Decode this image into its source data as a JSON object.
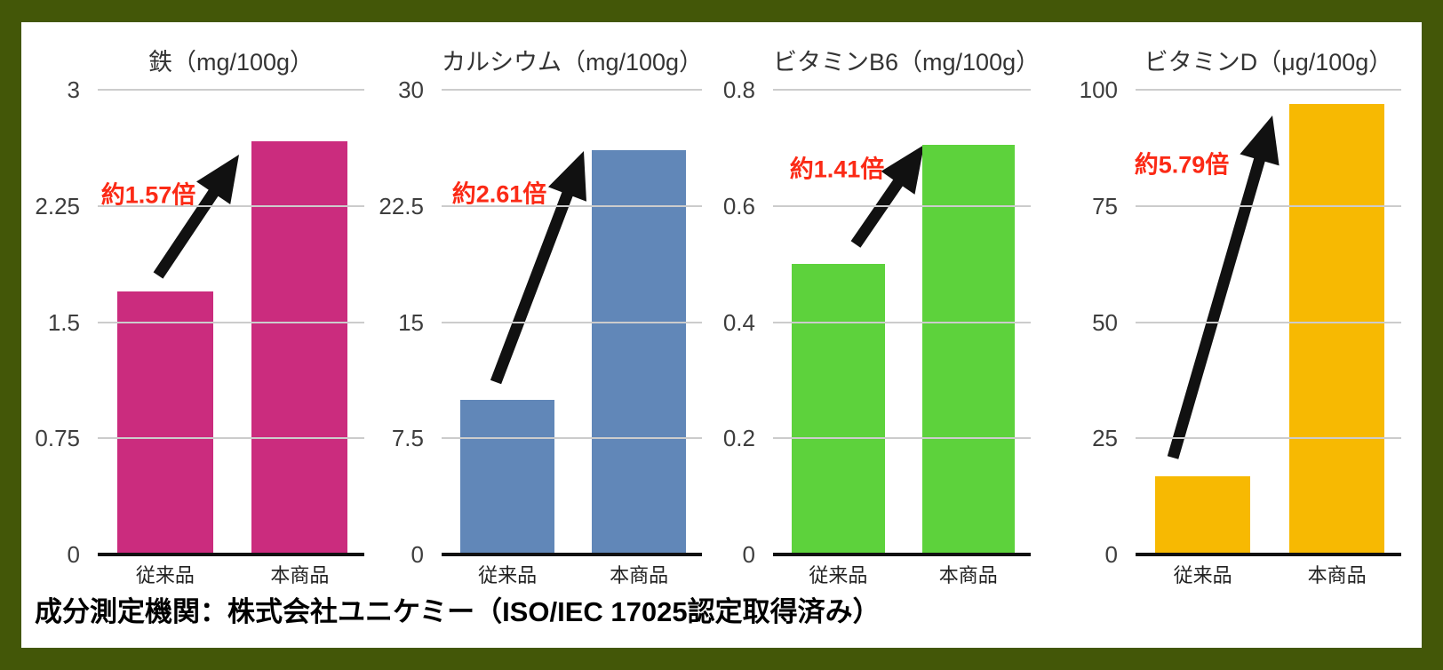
{
  "frame": {
    "border_color": "#435708",
    "background": "#ffffff"
  },
  "style": {
    "grid_color": "#cccccc",
    "axis_color": "#111111",
    "tick_color": "#3d3d3d",
    "title_color": "#333333",
    "arrow_color": "#111111",
    "annotation_red": "#fb2a16"
  },
  "footer": {
    "text": "成分測定機関：株式会社ユニケミー（ISO/IEC 17025認定取得済み）"
  },
  "chart_data": [
    {
      "type": "bar",
      "id": "iron",
      "title": "鉄（mg/100g）",
      "categories": [
        "従来品",
        "本商品"
      ],
      "values": [
        1.7,
        2.67
      ],
      "ylim": [
        0,
        3
      ],
      "yticks": [
        0,
        0.75,
        1.5,
        2.25,
        3
      ],
      "ytick_labels": [
        "0",
        "0.75",
        "1.5",
        "2.25",
        "3"
      ],
      "bar_color": "#cb2c7e",
      "annotation": {
        "text": "約1.57倍",
        "color": "#fb2a16"
      },
      "grid": true,
      "legend": false
    },
    {
      "type": "bar",
      "id": "calcium",
      "title": "カルシウム（mg/100g）",
      "categories": [
        "従来品",
        "本商品"
      ],
      "values": [
        10,
        26.1
      ],
      "ylim": [
        0,
        30
      ],
      "yticks": [
        0,
        7.5,
        15,
        22.5,
        30
      ],
      "ytick_labels": [
        "0",
        "7.5",
        "15",
        "22.5",
        "30"
      ],
      "bar_color": "#6187b8",
      "annotation": {
        "text": "約2.61倍",
        "color": "#fb2a16"
      },
      "grid": true,
      "legend": false
    },
    {
      "type": "bar",
      "id": "vitamin-b6",
      "title": "ビタミンB6（mg/100g）",
      "categories": [
        "従来品",
        "本商品"
      ],
      "values": [
        0.5,
        0.705
      ],
      "ylim": [
        0,
        0.8
      ],
      "yticks": [
        0,
        0.2,
        0.4,
        0.6,
        0.8
      ],
      "ytick_labels": [
        "0",
        "0.2",
        "0.4",
        "0.6",
        "0.8"
      ],
      "bar_color": "#5dd23c",
      "annotation": {
        "text": "約1.41倍",
        "color": "#fb2a16"
      },
      "grid": true,
      "legend": false
    },
    {
      "type": "bar",
      "id": "vitamin-d",
      "title": "ビタミンD（μg/100g）",
      "categories": [
        "従来品",
        "本商品"
      ],
      "values": [
        16.75,
        97
      ],
      "ylim": [
        0,
        100
      ],
      "yticks": [
        0,
        25,
        50,
        75,
        100
      ],
      "ytick_labels": [
        "0",
        "25",
        "50",
        "75",
        "100"
      ],
      "bar_color": "#f7b902",
      "annotation": {
        "text": "約5.79倍",
        "color": "#fb2a16"
      },
      "grid": true,
      "legend": false
    }
  ]
}
